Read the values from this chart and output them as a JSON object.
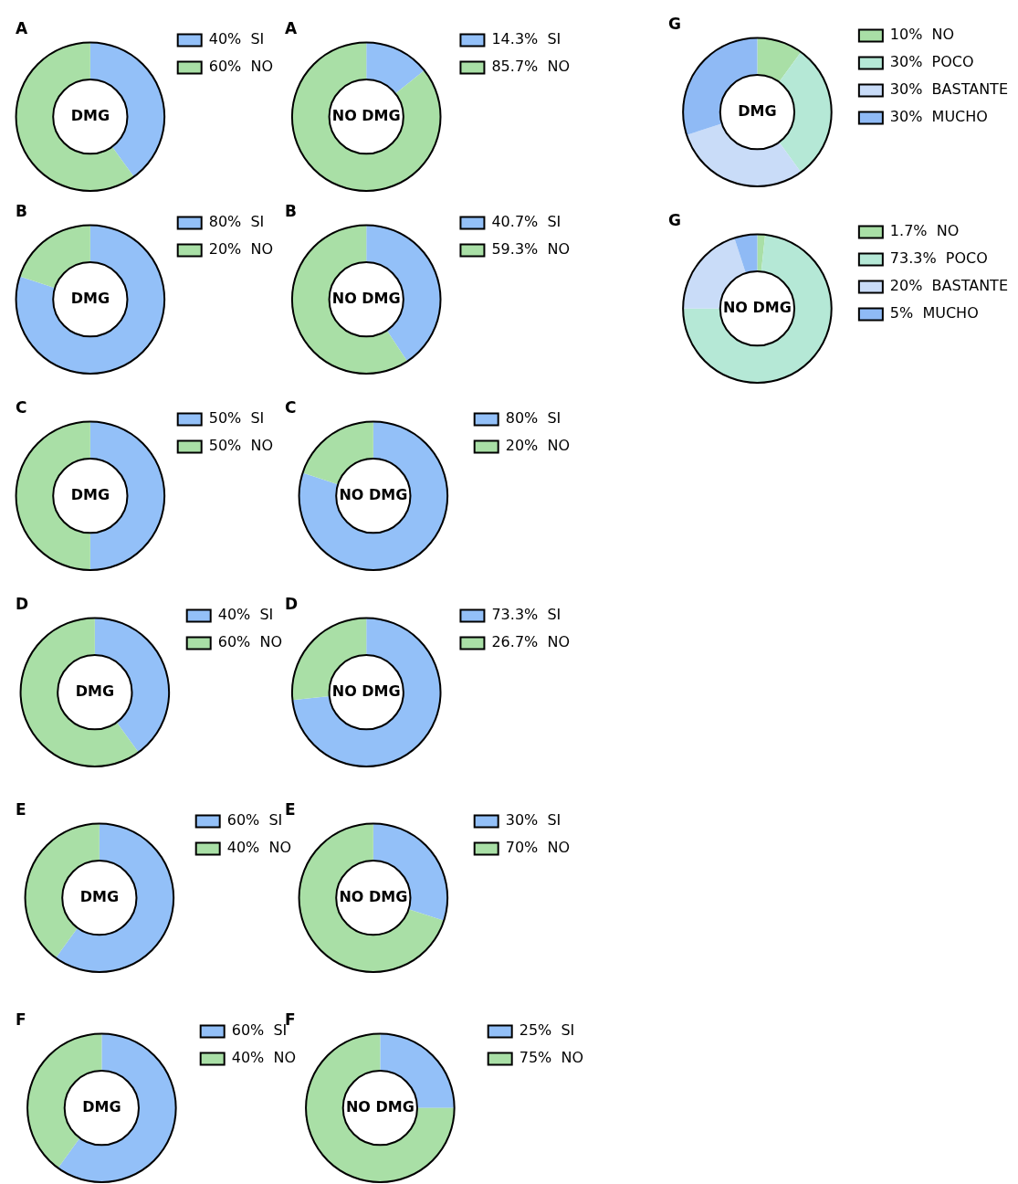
{
  "chart_data": [
    {
      "type": "donut",
      "title": "A",
      "annotations": [
        "DMG"
      ],
      "categories": [
        "SI",
        "NO"
      ],
      "values": [
        40,
        60
      ],
      "value_labels": [
        "40%",
        "60%"
      ],
      "colors": [
        "#93c0f8",
        "#a9dfa6"
      ],
      "legend": "right"
    },
    {
      "type": "donut",
      "title": "A",
      "annotations": [
        "NO DMG"
      ],
      "categories": [
        "SI",
        "NO"
      ],
      "values": [
        14.3,
        85.7
      ],
      "value_labels": [
        "14.3%",
        "85.7%"
      ],
      "colors": [
        "#93c0f8",
        "#a9dfa6"
      ],
      "legend": "right"
    },
    {
      "type": "donut",
      "title": "G",
      "annotations": [
        "DMG"
      ],
      "categories": [
        "NO",
        "POCO",
        "BASTANTE",
        "MUCHO"
      ],
      "values": [
        10,
        30,
        30,
        30
      ],
      "value_labels": [
        "10%",
        "30%",
        "30%",
        "30%"
      ],
      "colors": [
        "#a9dfa6",
        "#b5e8d6",
        "#c9dcf8",
        "#8fbaf5"
      ],
      "legend": "right"
    },
    {
      "type": "donut",
      "title": "B",
      "annotations": [
        "DMG"
      ],
      "categories": [
        "SI",
        "NO"
      ],
      "values": [
        80,
        20
      ],
      "value_labels": [
        "80%",
        "20%"
      ],
      "colors": [
        "#93c0f8",
        "#a9dfa6"
      ],
      "legend": "right"
    },
    {
      "type": "donut",
      "title": "B",
      "annotations": [
        "NO DMG"
      ],
      "categories": [
        "SI",
        "NO"
      ],
      "values": [
        40.7,
        59.3
      ],
      "value_labels": [
        "40.7%",
        "59.3%"
      ],
      "colors": [
        "#93c0f8",
        "#a9dfa6"
      ],
      "legend": "right"
    },
    {
      "type": "donut",
      "title": "G",
      "annotations": [
        "NO DMG"
      ],
      "categories": [
        "NO",
        "POCO",
        "BASTANTE",
        "MUCHO"
      ],
      "values": [
        1.7,
        73.3,
        20,
        5
      ],
      "value_labels": [
        "1.7%",
        "73.3%",
        "20%",
        "5%"
      ],
      "colors": [
        "#a9dfa6",
        "#b5e8d6",
        "#c9dcf8",
        "#8fbaf5"
      ],
      "legend": "right"
    },
    {
      "type": "donut",
      "title": "C",
      "annotations": [
        "DMG"
      ],
      "categories": [
        "SI",
        "NO"
      ],
      "values": [
        50,
        50
      ],
      "value_labels": [
        "50%",
        "50%"
      ],
      "colors": [
        "#93c0f8",
        "#a9dfa6"
      ],
      "legend": "right"
    },
    {
      "type": "donut",
      "title": "C",
      "annotations": [
        "NO DMG"
      ],
      "categories": [
        "SI",
        "NO"
      ],
      "values": [
        80,
        20
      ],
      "value_labels": [
        "80%",
        "20%"
      ],
      "colors": [
        "#93c0f8",
        "#a9dfa6"
      ],
      "legend": "right"
    },
    {
      "type": "donut",
      "title": "D",
      "annotations": [
        "DMG"
      ],
      "categories": [
        "SI",
        "NO"
      ],
      "values": [
        40,
        60
      ],
      "value_labels": [
        "40%",
        "60%"
      ],
      "colors": [
        "#93c0f8",
        "#a9dfa6"
      ],
      "legend": "right"
    },
    {
      "type": "donut",
      "title": "D",
      "annotations": [
        "NO DMG"
      ],
      "categories": [
        "SI",
        "NO"
      ],
      "values": [
        73.3,
        26.7
      ],
      "value_labels": [
        "73.3%",
        "26.7%"
      ],
      "colors": [
        "#93c0f8",
        "#a9dfa6"
      ],
      "legend": "right"
    },
    {
      "type": "donut",
      "title": "E",
      "annotations": [
        "DMG"
      ],
      "categories": [
        "SI",
        "NO"
      ],
      "values": [
        60,
        40
      ],
      "value_labels": [
        "60%",
        "40%"
      ],
      "colors": [
        "#93c0f8",
        "#a9dfa6"
      ],
      "legend": "right"
    },
    {
      "type": "donut",
      "title": "E",
      "annotations": [
        "NO DMG"
      ],
      "categories": [
        "SI",
        "NO"
      ],
      "values": [
        30,
        70
      ],
      "value_labels": [
        "30%",
        "70%"
      ],
      "colors": [
        "#93c0f8",
        "#a9dfa6"
      ],
      "legend": "right"
    },
    {
      "type": "donut",
      "title": "F",
      "annotations": [
        "DMG"
      ],
      "categories": [
        "SI",
        "NO"
      ],
      "values": [
        60,
        40
      ],
      "value_labels": [
        "60%",
        "40%"
      ],
      "colors": [
        "#93c0f8",
        "#a9dfa6"
      ],
      "legend": "right"
    },
    {
      "type": "donut",
      "title": "F",
      "annotations": [
        "NO DMG"
      ],
      "categories": [
        "SI",
        "NO"
      ],
      "values": [
        25,
        75
      ],
      "value_labels": [
        "25%",
        "75%"
      ],
      "colors": [
        "#93c0f8",
        "#a9dfa6"
      ],
      "legend": "right"
    }
  ]
}
